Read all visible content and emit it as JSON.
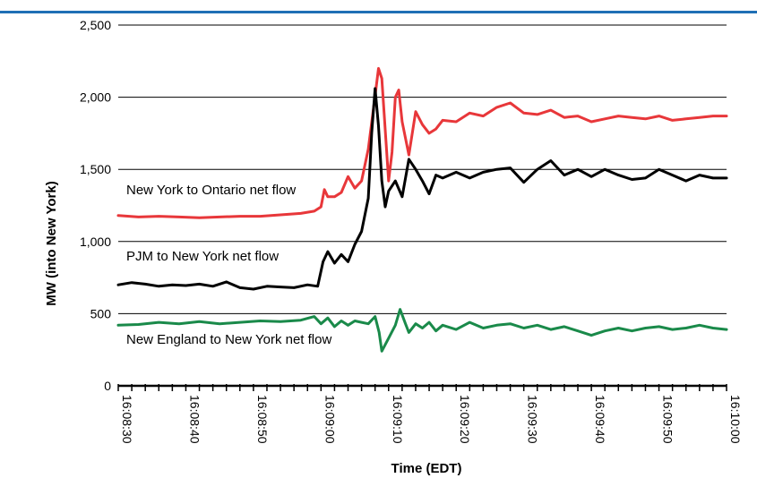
{
  "chart_data": {
    "type": "line",
    "title": "",
    "xlabel": "Time (EDT)",
    "ylabel": "MW (into New York)",
    "ylim": [
      0,
      2500
    ],
    "yticks": [
      0,
      500,
      1000,
      1500,
      2000,
      2500
    ],
    "ytick_labels": [
      "0",
      "500",
      "1,000",
      "1,500",
      "2,000",
      "2,500"
    ],
    "xlim": [
      "16:08:30",
      "16:10:00"
    ],
    "x_minor_tick_step_seconds": 2,
    "xtick_labels": [
      "16:08:30",
      "16:08:40",
      "16:08:50",
      "16:09:00",
      "16:09:10",
      "16:09:20",
      "16:09:30",
      "16:09:40",
      "16:09:50",
      "16:10:00"
    ],
    "grid": "horizontal",
    "legend": "none",
    "series": [
      {
        "name": "New York to Ontario net flow",
        "color": "#e8373a",
        "points": [
          [
            "16:08:30",
            1180
          ],
          [
            "16:08:33",
            1170
          ],
          [
            "16:08:36",
            1175
          ],
          [
            "16:08:39",
            1170
          ],
          [
            "16:08:42",
            1165
          ],
          [
            "16:08:45",
            1170
          ],
          [
            "16:08:48",
            1175
          ],
          [
            "16:08:51",
            1175
          ],
          [
            "16:08:54",
            1185
          ],
          [
            "16:08:57",
            1195
          ],
          [
            "16:08:59",
            1210
          ],
          [
            "16:09:00",
            1240
          ],
          [
            "16:09:00.5",
            1360
          ],
          [
            "16:09:01",
            1310
          ],
          [
            "16:09:02",
            1310
          ],
          [
            "16:09:03",
            1340
          ],
          [
            "16:09:04",
            1450
          ],
          [
            "16:09:05",
            1370
          ],
          [
            "16:09:06",
            1420
          ],
          [
            "16:09:07",
            1640
          ],
          [
            "16:09:08",
            2010
          ],
          [
            "16:09:08.5",
            2200
          ],
          [
            "16:09:09",
            2130
          ],
          [
            "16:09:09.6",
            1700
          ],
          [
            "16:09:10",
            1420
          ],
          [
            "16:09:10.5",
            1620
          ],
          [
            "16:09:11",
            2000
          ],
          [
            "16:09:11.5",
            2050
          ],
          [
            "16:09:12",
            1830
          ],
          [
            "16:09:13",
            1600
          ],
          [
            "16:09:14",
            1900
          ],
          [
            "16:09:15",
            1810
          ],
          [
            "16:09:16",
            1750
          ],
          [
            "16:09:17",
            1780
          ],
          [
            "16:09:18",
            1840
          ],
          [
            "16:09:20",
            1830
          ],
          [
            "16:09:22",
            1890
          ],
          [
            "16:09:24",
            1870
          ],
          [
            "16:09:26",
            1930
          ],
          [
            "16:09:28",
            1960
          ],
          [
            "16:09:30",
            1890
          ],
          [
            "16:09:32",
            1880
          ],
          [
            "16:09:34",
            1910
          ],
          [
            "16:09:36",
            1860
          ],
          [
            "16:09:38",
            1870
          ],
          [
            "16:09:40",
            1830
          ],
          [
            "16:09:42",
            1850
          ],
          [
            "16:09:44",
            1870
          ],
          [
            "16:09:46",
            1860
          ],
          [
            "16:09:48",
            1850
          ],
          [
            "16:09:50",
            1870
          ],
          [
            "16:09:52",
            1840
          ],
          [
            "16:09:54",
            1850
          ],
          [
            "16:09:56",
            1860
          ],
          [
            "16:09:58",
            1870
          ],
          [
            "16:10:00",
            1870
          ]
        ]
      },
      {
        "name": "PJM to New York net flow",
        "color": "#000000",
        "points": [
          [
            "16:08:30",
            700
          ],
          [
            "16:08:32",
            715
          ],
          [
            "16:08:34",
            705
          ],
          [
            "16:08:36",
            690
          ],
          [
            "16:08:38",
            700
          ],
          [
            "16:08:40",
            695
          ],
          [
            "16:08:42",
            705
          ],
          [
            "16:08:44",
            690
          ],
          [
            "16:08:46",
            720
          ],
          [
            "16:08:48",
            680
          ],
          [
            "16:08:50",
            670
          ],
          [
            "16:08:52",
            690
          ],
          [
            "16:08:54",
            685
          ],
          [
            "16:08:56",
            680
          ],
          [
            "16:08:58",
            700
          ],
          [
            "16:08:59.5",
            690
          ],
          [
            "16:09:00.3",
            860
          ],
          [
            "16:09:01",
            930
          ],
          [
            "16:09:02",
            850
          ],
          [
            "16:09:03",
            910
          ],
          [
            "16:09:04",
            860
          ],
          [
            "16:09:05",
            980
          ],
          [
            "16:09:06",
            1070
          ],
          [
            "16:09:07",
            1300
          ],
          [
            "16:09:07.5",
            1750
          ],
          [
            "16:09:08",
            2060
          ],
          [
            "16:09:08.5",
            1800
          ],
          [
            "16:09:09",
            1420
          ],
          [
            "16:09:09.5",
            1240
          ],
          [
            "16:09:10",
            1350
          ],
          [
            "16:09:11",
            1420
          ],
          [
            "16:09:12",
            1310
          ],
          [
            "16:09:13",
            1570
          ],
          [
            "16:09:14",
            1500
          ],
          [
            "16:09:15",
            1420
          ],
          [
            "16:09:16",
            1330
          ],
          [
            "16:09:17",
            1460
          ],
          [
            "16:09:18",
            1440
          ],
          [
            "16:09:20",
            1480
          ],
          [
            "16:09:22",
            1440
          ],
          [
            "16:09:24",
            1480
          ],
          [
            "16:09:26",
            1500
          ],
          [
            "16:09:28",
            1510
          ],
          [
            "16:09:30",
            1410
          ],
          [
            "16:09:32",
            1500
          ],
          [
            "16:09:34",
            1560
          ],
          [
            "16:09:36",
            1460
          ],
          [
            "16:09:38",
            1500
          ],
          [
            "16:09:40",
            1450
          ],
          [
            "16:09:42",
            1500
          ],
          [
            "16:09:44",
            1460
          ],
          [
            "16:09:46",
            1430
          ],
          [
            "16:09:48",
            1440
          ],
          [
            "16:09:50",
            1500
          ],
          [
            "16:09:52",
            1460
          ],
          [
            "16:09:54",
            1420
          ],
          [
            "16:09:56",
            1460
          ],
          [
            "16:09:58",
            1440
          ],
          [
            "16:10:00",
            1440
          ]
        ]
      },
      {
        "name": "New England to New York net flow",
        "color": "#1a8a4a",
        "points": [
          [
            "16:08:30",
            420
          ],
          [
            "16:08:33",
            425
          ],
          [
            "16:08:36",
            440
          ],
          [
            "16:08:39",
            430
          ],
          [
            "16:08:42",
            445
          ],
          [
            "16:08:45",
            430
          ],
          [
            "16:08:48",
            440
          ],
          [
            "16:08:51",
            450
          ],
          [
            "16:08:54",
            445
          ],
          [
            "16:08:57",
            455
          ],
          [
            "16:08:59",
            480
          ],
          [
            "16:09:00",
            430
          ],
          [
            "16:09:01",
            470
          ],
          [
            "16:09:02",
            410
          ],
          [
            "16:09:03",
            450
          ],
          [
            "16:09:04",
            420
          ],
          [
            "16:09:05",
            450
          ],
          [
            "16:09:06",
            440
          ],
          [
            "16:09:07",
            430
          ],
          [
            "16:09:08",
            480
          ],
          [
            "16:09:08.6",
            370
          ],
          [
            "16:09:09",
            240
          ],
          [
            "16:09:10",
            330
          ],
          [
            "16:09:11",
            420
          ],
          [
            "16:09:11.7",
            530
          ],
          [
            "16:09:12.5",
            430
          ],
          [
            "16:09:13",
            370
          ],
          [
            "16:09:14",
            430
          ],
          [
            "16:09:15",
            400
          ],
          [
            "16:09:16",
            440
          ],
          [
            "16:09:17",
            380
          ],
          [
            "16:09:18",
            420
          ],
          [
            "16:09:20",
            390
          ],
          [
            "16:09:22",
            440
          ],
          [
            "16:09:24",
            400
          ],
          [
            "16:09:26",
            420
          ],
          [
            "16:09:28",
            430
          ],
          [
            "16:09:30",
            400
          ],
          [
            "16:09:32",
            420
          ],
          [
            "16:09:34",
            390
          ],
          [
            "16:09:36",
            410
          ],
          [
            "16:09:38",
            380
          ],
          [
            "16:09:40",
            350
          ],
          [
            "16:09:42",
            380
          ],
          [
            "16:09:44",
            400
          ],
          [
            "16:09:46",
            380
          ],
          [
            "16:09:48",
            400
          ],
          [
            "16:09:50",
            410
          ],
          [
            "16:09:52",
            390
          ],
          [
            "16:09:54",
            400
          ],
          [
            "16:09:56",
            420
          ],
          [
            "16:09:58",
            400
          ],
          [
            "16:10:00",
            390
          ]
        ]
      }
    ],
    "annotations": [
      "New York to Ontario net flow",
      "PJM to New York net flow",
      "New England to New York net flow"
    ]
  }
}
